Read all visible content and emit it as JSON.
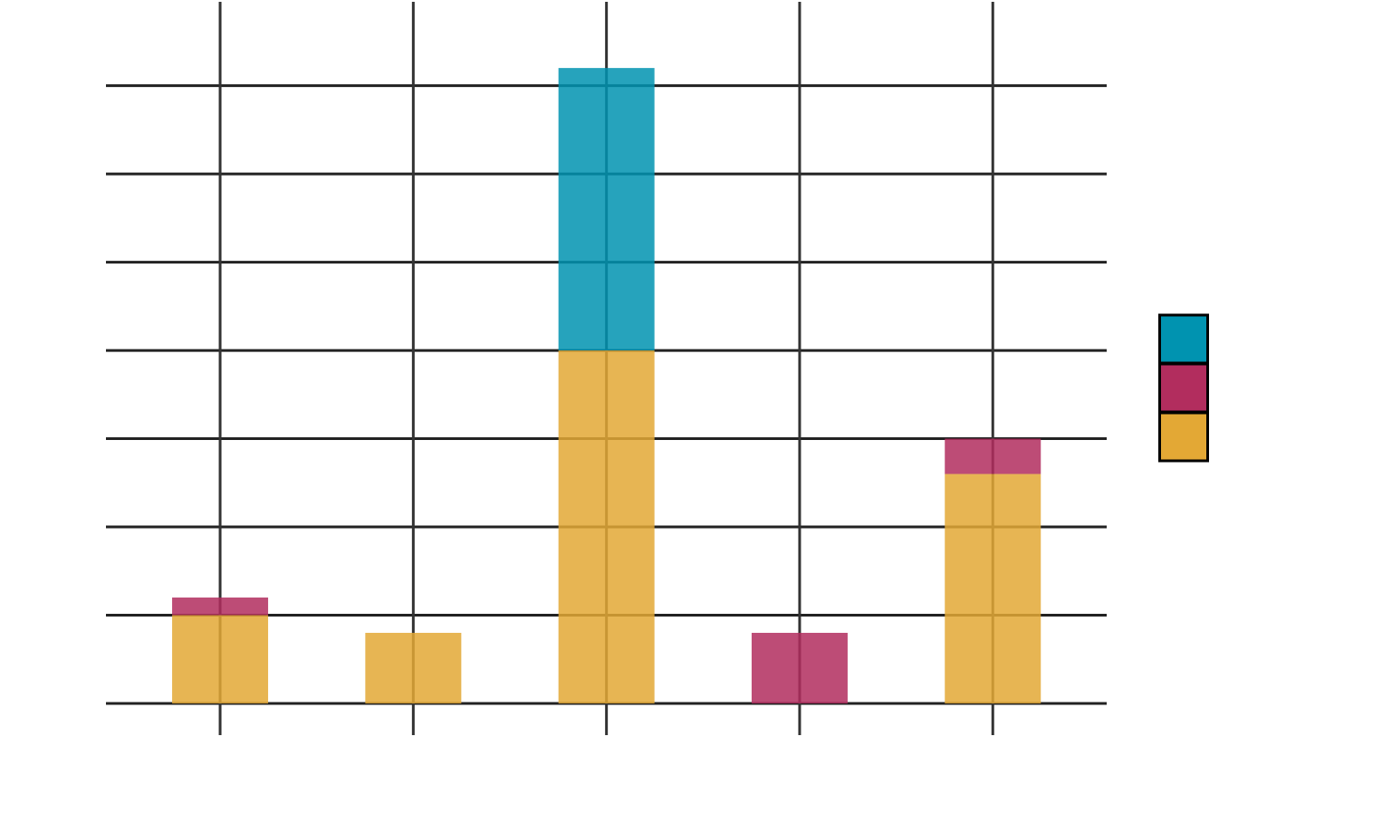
{
  "chart_data": {
    "type": "stacked_bar",
    "categories": [
      null,
      null,
      null,
      null,
      null
    ],
    "series": [
      {
        "color": "#e3a835",
        "values": [
          1.0,
          0.8,
          4.0,
          0,
          2.6
        ]
      },
      {
        "color": "#b22d5e",
        "values": [
          0.2,
          0,
          0,
          0.8,
          0.4
        ]
      },
      {
        "color": "#0093b0",
        "values": [
          0,
          0,
          3.2,
          0,
          0
        ]
      }
    ],
    "ylim": [
      0,
      7.95
    ],
    "yticks": [
      0,
      1,
      2,
      3,
      4,
      5,
      6,
      7
    ],
    "grid": true
  }
}
